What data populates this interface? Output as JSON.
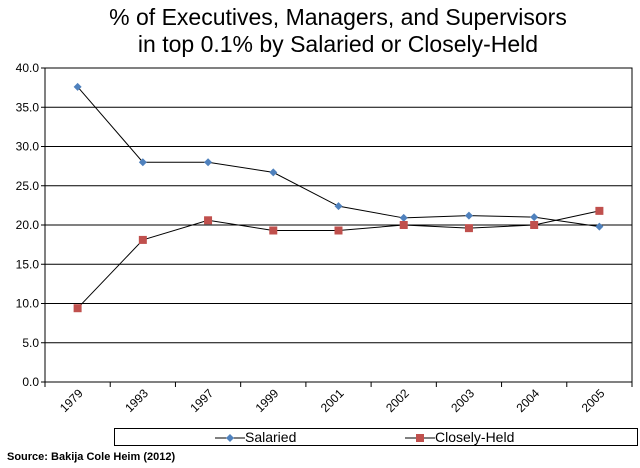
{
  "chart_data": {
    "type": "line",
    "title": "% of  Executives, Managers, and Supervisors",
    "subtitle": "in top 0.1% by Salaried or Closely-Held",
    "categories": [
      "1979",
      "1993",
      "1997",
      "1999",
      "2001",
      "2002",
      "2003",
      "2004",
      "2005"
    ],
    "series": [
      {
        "name": "Salaried",
        "marker": "diamond",
        "color": "#4F81BD",
        "values": [
          37.6,
          28.0,
          28.0,
          26.7,
          22.4,
          20.9,
          21.2,
          21.0,
          19.8
        ]
      },
      {
        "name": "Closely-Held",
        "marker": "square",
        "color": "#C0504D",
        "values": [
          9.4,
          18.1,
          20.6,
          19.3,
          19.3,
          20.0,
          19.6,
          20.0,
          21.8
        ]
      }
    ],
    "ylim": [
      0,
      40
    ],
    "yticks": [
      "0.0",
      "5.0",
      "10.0",
      "15.0",
      "20.0",
      "25.0",
      "30.0",
      "35.0",
      "40.0"
    ],
    "grid": true,
    "legend_position": "bottom",
    "source": "Source: Bakija Cole Heim (2012)"
  }
}
